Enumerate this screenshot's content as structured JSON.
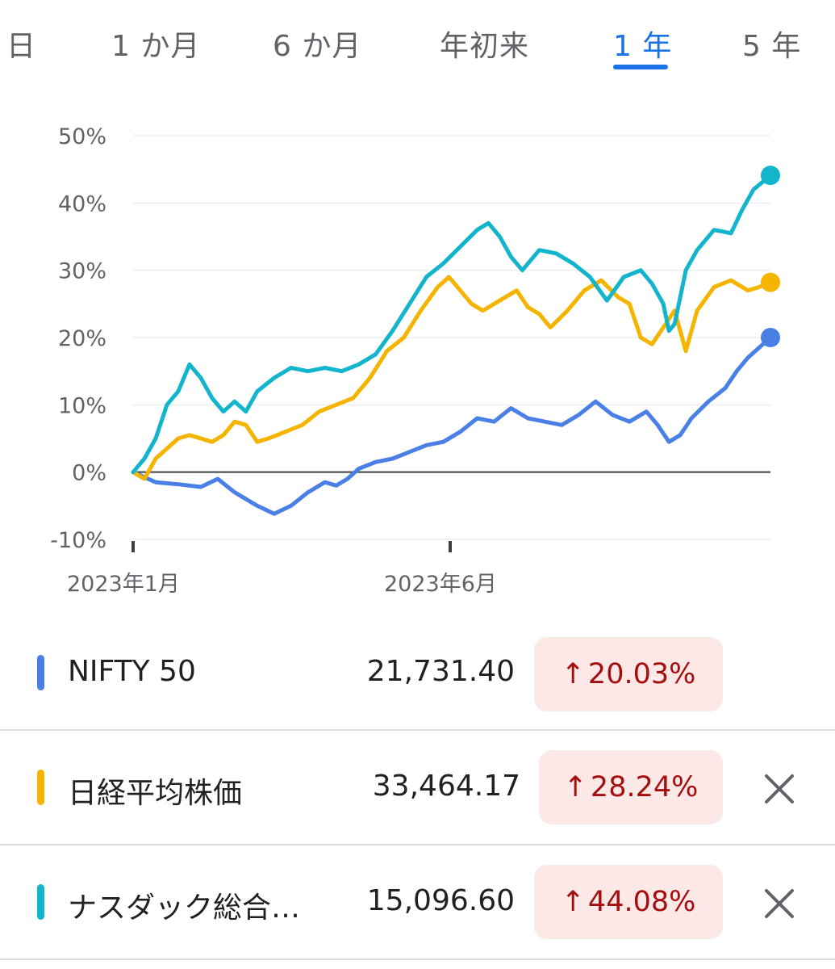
{
  "tabs": [
    {
      "label": "日",
      "active": false
    },
    {
      "label": "1 か月",
      "active": false
    },
    {
      "label": "6 か月",
      "active": false
    },
    {
      "label": "年初来",
      "active": false
    },
    {
      "label": "1 年",
      "active": true
    },
    {
      "label": "5 年",
      "active": false
    }
  ],
  "chart_data": {
    "type": "line",
    "y_ticks": [
      "50%",
      "40%",
      "30%",
      "20%",
      "10%",
      "0%",
      "-10%"
    ],
    "ylim": [
      -10,
      50
    ],
    "x_ticks": [
      "2023年1月",
      "2023年6月"
    ],
    "x_range_months": [
      "2022-12",
      "2023-12"
    ],
    "baseline": 0,
    "grid": true,
    "series": [
      {
        "name": "NIFTY 50",
        "color": "#4a7fe5",
        "points": [
          [
            0,
            0
          ],
          [
            4,
            -1.5
          ],
          [
            8,
            -1.8
          ],
          [
            12,
            -2.2
          ],
          [
            15,
            -1.0
          ],
          [
            18,
            -3.0
          ],
          [
            22,
            -5.0
          ],
          [
            25,
            -6.2
          ],
          [
            28,
            -5.0
          ],
          [
            31,
            -3.0
          ],
          [
            34,
            -1.5
          ],
          [
            36,
            -2.0
          ],
          [
            38,
            -1.0
          ],
          [
            40,
            0.5
          ],
          [
            43,
            1.5
          ],
          [
            46,
            2.0
          ],
          [
            49,
            3.0
          ],
          [
            52,
            4.0
          ],
          [
            55,
            4.5
          ],
          [
            58,
            6.0
          ],
          [
            61,
            8.0
          ],
          [
            64,
            7.5
          ],
          [
            67,
            9.5
          ],
          [
            70,
            8.0
          ],
          [
            73,
            7.5
          ],
          [
            76,
            7.0
          ],
          [
            79,
            8.5
          ],
          [
            82,
            10.5
          ],
          [
            85,
            8.5
          ],
          [
            88,
            7.5
          ],
          [
            91,
            9.0
          ],
          [
            93,
            7.0
          ],
          [
            95,
            4.5
          ],
          [
            97,
            5.5
          ],
          [
            99,
            8.0
          ],
          [
            102,
            10.5
          ],
          [
            105,
            12.5
          ],
          [
            107,
            15.0
          ],
          [
            109,
            17.0
          ],
          [
            111,
            18.5
          ],
          [
            113,
            20.0
          ]
        ]
      },
      {
        "name": "日経平均株価",
        "color": "#f4b400",
        "points": [
          [
            0,
            0
          ],
          [
            2,
            -1.0
          ],
          [
            4,
            2.0
          ],
          [
            6,
            3.5
          ],
          [
            8,
            5.0
          ],
          [
            10,
            5.5
          ],
          [
            12,
            5.0
          ],
          [
            14,
            4.5
          ],
          [
            16,
            5.5
          ],
          [
            18,
            7.5
          ],
          [
            20,
            7.0
          ],
          [
            22,
            4.5
          ],
          [
            24,
            5.0
          ],
          [
            27,
            6.0
          ],
          [
            30,
            7.0
          ],
          [
            33,
            9.0
          ],
          [
            36,
            10.0
          ],
          [
            39,
            11.0
          ],
          [
            42,
            14.0
          ],
          [
            45,
            18.0
          ],
          [
            48,
            20.0
          ],
          [
            51,
            24.0
          ],
          [
            54,
            27.5
          ],
          [
            56,
            29.0
          ],
          [
            58,
            27.0
          ],
          [
            60,
            25.0
          ],
          [
            62,
            24.0
          ],
          [
            65,
            25.5
          ],
          [
            68,
            27.0
          ],
          [
            70,
            24.5
          ],
          [
            72,
            23.5
          ],
          [
            74,
            21.5
          ],
          [
            77,
            24.0
          ],
          [
            80,
            27.0
          ],
          [
            83,
            28.5
          ],
          [
            86,
            26.0
          ],
          [
            88,
            25.0
          ],
          [
            90,
            20.0
          ],
          [
            92,
            19.0
          ],
          [
            94,
            21.5
          ],
          [
            96,
            24.0
          ],
          [
            98,
            18.0
          ],
          [
            100,
            24.0
          ],
          [
            103,
            27.5
          ],
          [
            106,
            28.5
          ],
          [
            109,
            27.0
          ],
          [
            111,
            27.5
          ],
          [
            113,
            28.2
          ]
        ]
      },
      {
        "name": "ナスダック総合指数",
        "color": "#12b5cb",
        "points": [
          [
            0,
            0
          ],
          [
            2,
            2.0
          ],
          [
            4,
            5.0
          ],
          [
            6,
            10.0
          ],
          [
            8,
            12.0
          ],
          [
            10,
            16.0
          ],
          [
            12,
            14.0
          ],
          [
            14,
            11.0
          ],
          [
            16,
            9.0
          ],
          [
            18,
            10.5
          ],
          [
            20,
            9.0
          ],
          [
            22,
            12.0
          ],
          [
            25,
            14.0
          ],
          [
            28,
            15.5
          ],
          [
            31,
            15.0
          ],
          [
            34,
            15.5
          ],
          [
            37,
            15.0
          ],
          [
            40,
            16.0
          ],
          [
            43,
            17.5
          ],
          [
            46,
            21.0
          ],
          [
            49,
            25.0
          ],
          [
            52,
            29.0
          ],
          [
            55,
            31.0
          ],
          [
            58,
            33.5
          ],
          [
            61,
            36.0
          ],
          [
            63,
            37.0
          ],
          [
            65,
            35.0
          ],
          [
            67,
            32.0
          ],
          [
            69,
            30.0
          ],
          [
            72,
            33.0
          ],
          [
            75,
            32.5
          ],
          [
            78,
            31.0
          ],
          [
            81,
            29.0
          ],
          [
            84,
            25.5
          ],
          [
            87,
            29.0
          ],
          [
            90,
            30.0
          ],
          [
            92,
            28.0
          ],
          [
            94,
            25.0
          ],
          [
            95,
            21.0
          ],
          [
            96,
            22.0
          ],
          [
            98,
            30.0
          ],
          [
            100,
            33.0
          ],
          [
            103,
            36.0
          ],
          [
            106,
            35.5
          ],
          [
            108,
            39.0
          ],
          [
            110,
            42.0
          ],
          [
            113,
            44.1
          ]
        ]
      }
    ]
  },
  "rows": [
    {
      "name": "NIFTY 50",
      "price": "21,731.40",
      "change": "20.03%",
      "arrow": "↑",
      "removable": false
    },
    {
      "name": "日経平均株価",
      "price": "33,464.17",
      "change": "28.24%",
      "arrow": "↑",
      "removable": true
    },
    {
      "name": "ナスダック総合…",
      "price": "15,096.60",
      "change": "44.08%",
      "arrow": "↑",
      "removable": true
    }
  ]
}
